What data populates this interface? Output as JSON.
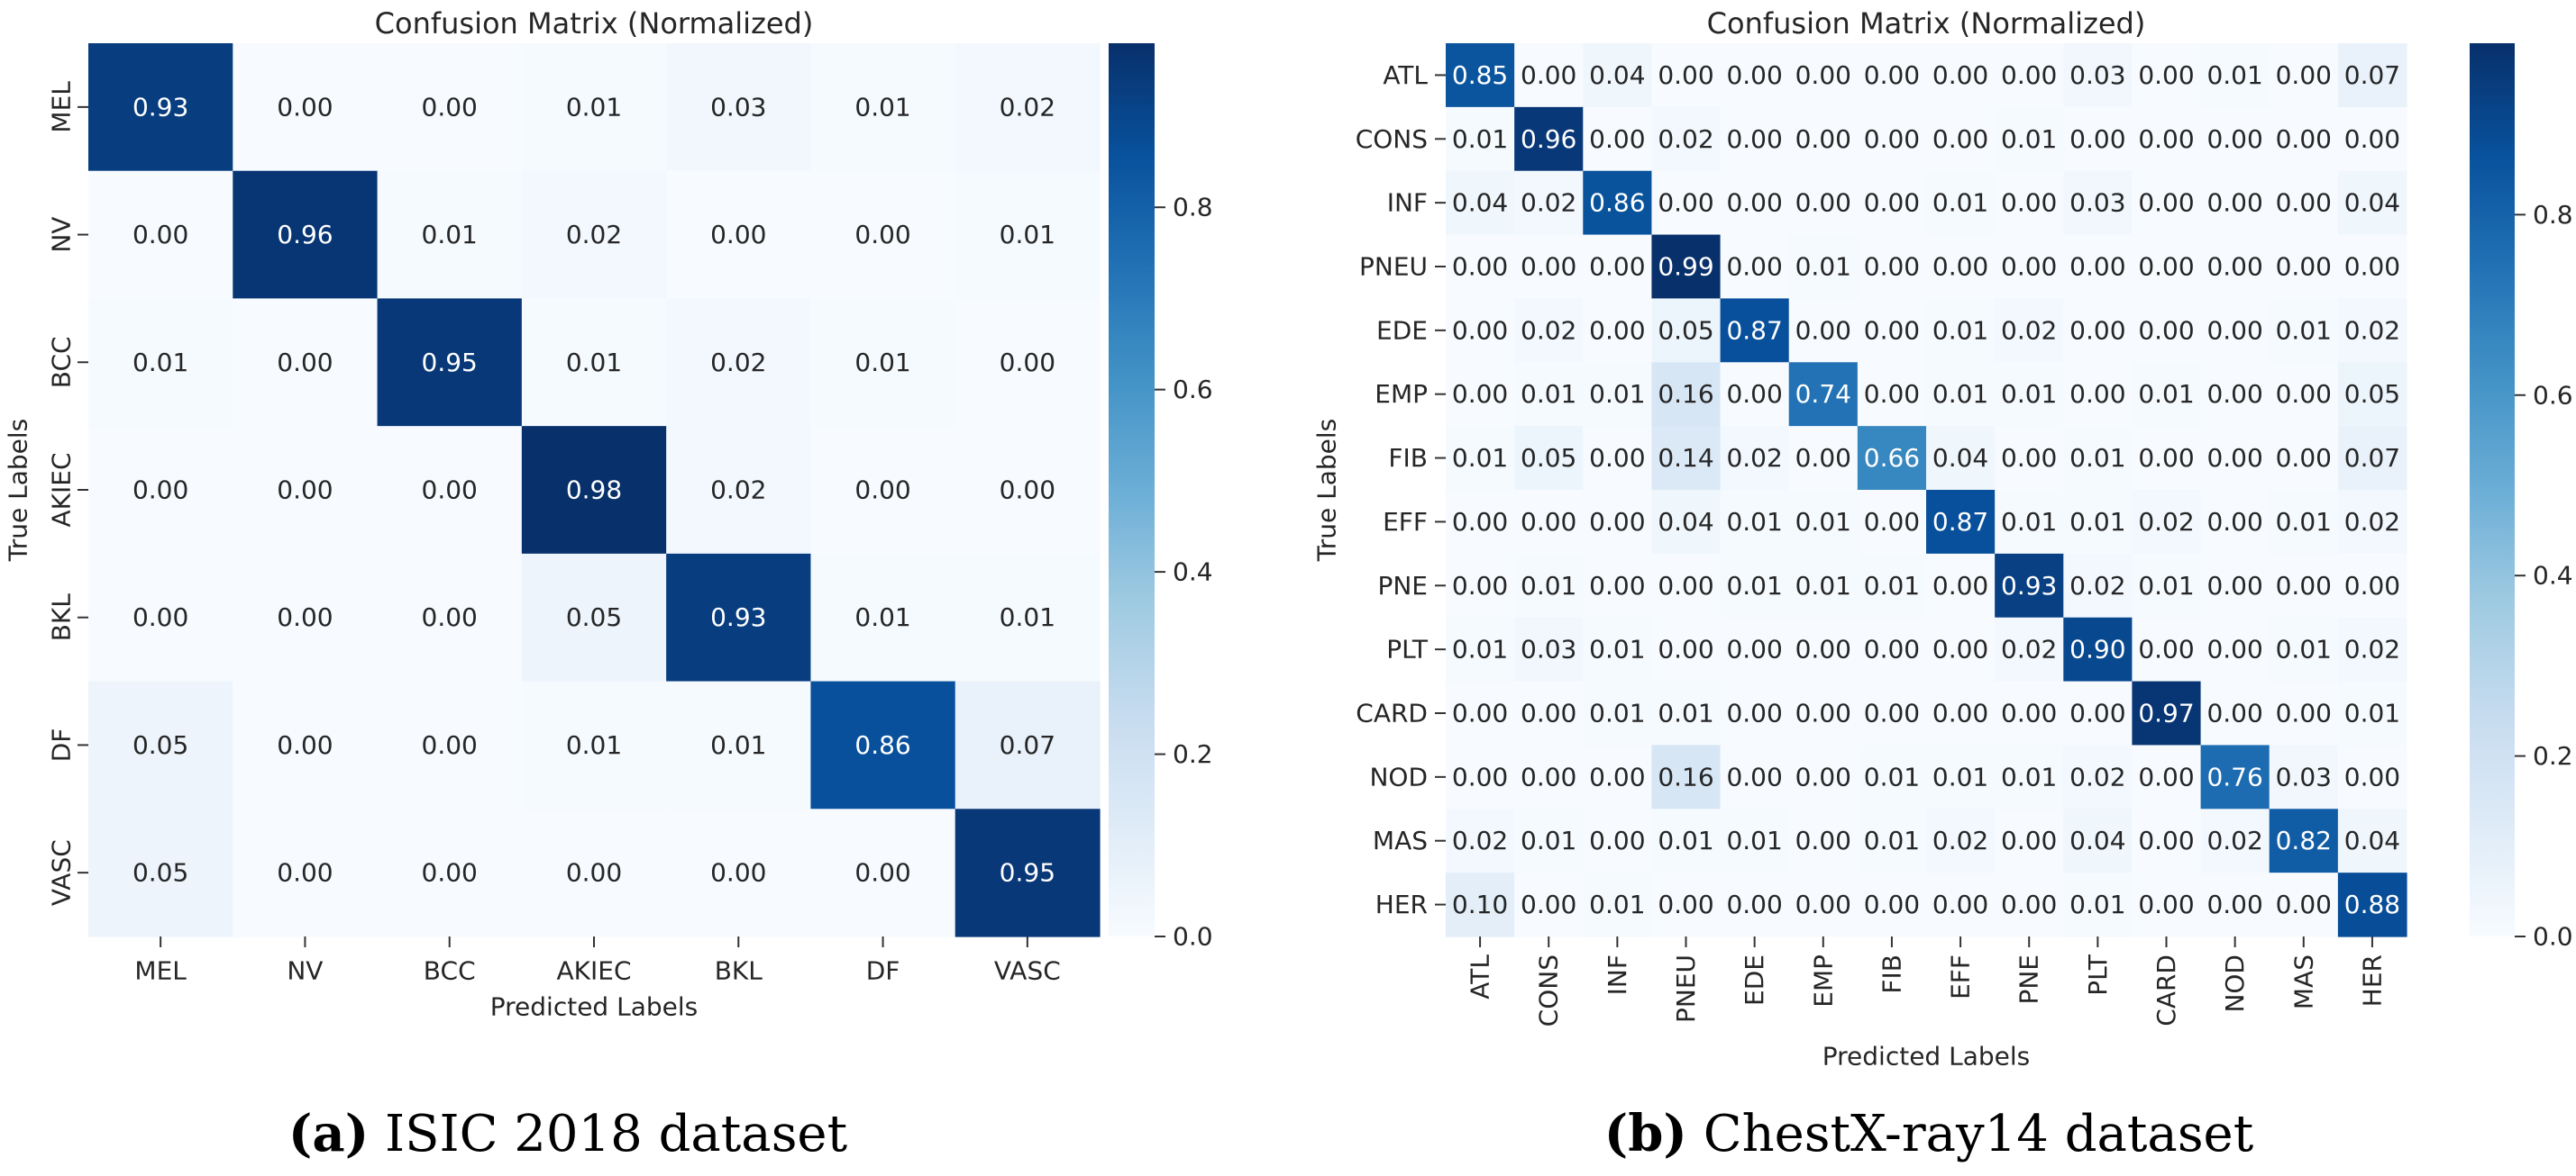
{
  "chart_data": [
    {
      "type": "heatmap",
      "title": "Confusion Matrix (Normalized)",
      "xlabel": "Predicted Labels",
      "ylabel": "True Labels",
      "caption_label": "(a)",
      "caption_text": "ISIC 2018 dataset",
      "x_categories": [
        "MEL",
        "NV",
        "BCC",
        "AKIEC",
        "BKL",
        "DF",
        "VASC"
      ],
      "y_categories": [
        "MEL",
        "NV",
        "BCC",
        "AKIEC",
        "BKL",
        "DF",
        "VASC"
      ],
      "values": [
        [
          0.93,
          0.0,
          0.0,
          0.01,
          0.03,
          0.01,
          0.02
        ],
        [
          0.0,
          0.96,
          0.01,
          0.02,
          0.0,
          0.0,
          0.01
        ],
        [
          0.01,
          0.0,
          0.95,
          0.01,
          0.02,
          0.01,
          0.0
        ],
        [
          0.0,
          0.0,
          0.0,
          0.98,
          0.02,
          0.0,
          0.0
        ],
        [
          0.0,
          0.0,
          0.0,
          0.05,
          0.93,
          0.01,
          0.01
        ],
        [
          0.05,
          0.0,
          0.0,
          0.01,
          0.01,
          0.86,
          0.07
        ],
        [
          0.05,
          0.0,
          0.0,
          0.0,
          0.0,
          0.0,
          0.95
        ]
      ],
      "colorbar": {
        "min": 0.0,
        "max": 0.98,
        "ticks": [
          0.0,
          0.2,
          0.4,
          0.6,
          0.8
        ],
        "colormap": "Blues"
      }
    },
    {
      "type": "heatmap",
      "title": "Confusion Matrix (Normalized)",
      "xlabel": "Predicted Labels",
      "ylabel": "True Labels",
      "caption_label": "(b)",
      "caption_text": "ChestX-ray14 dataset",
      "x_categories": [
        "ATL",
        "CONS",
        "INF",
        "PNEU",
        "EDE",
        "EMP",
        "FIB",
        "EFF",
        "PNE",
        "PLT",
        "CARD",
        "NOD",
        "MAS",
        "HER"
      ],
      "y_categories": [
        "ATL",
        "CONS",
        "INF",
        "PNEU",
        "EDE",
        "EMP",
        "FIB",
        "EFF",
        "PNE",
        "PLT",
        "CARD",
        "NOD",
        "MAS",
        "HER"
      ],
      "values": [
        [
          0.85,
          0.0,
          0.04,
          0.0,
          0.0,
          0.0,
          0.0,
          0.0,
          0.0,
          0.03,
          0.0,
          0.01,
          0.0,
          0.07
        ],
        [
          0.01,
          0.96,
          0.0,
          0.02,
          0.0,
          0.0,
          0.0,
          0.0,
          0.01,
          0.0,
          0.0,
          0.0,
          0.0,
          0.0
        ],
        [
          0.04,
          0.02,
          0.86,
          0.0,
          0.0,
          0.0,
          0.0,
          0.01,
          0.0,
          0.03,
          0.0,
          0.0,
          0.0,
          0.04
        ],
        [
          0.0,
          0.0,
          0.0,
          0.99,
          0.0,
          0.01,
          0.0,
          0.0,
          0.0,
          0.0,
          0.0,
          0.0,
          0.0,
          0.0
        ],
        [
          0.0,
          0.02,
          0.0,
          0.05,
          0.87,
          0.0,
          0.0,
          0.01,
          0.02,
          0.0,
          0.0,
          0.0,
          0.01,
          0.02
        ],
        [
          0.0,
          0.01,
          0.01,
          0.16,
          0.0,
          0.74,
          0.0,
          0.01,
          0.01,
          0.0,
          0.01,
          0.0,
          0.0,
          0.05
        ],
        [
          0.01,
          0.05,
          0.0,
          0.14,
          0.02,
          0.0,
          0.66,
          0.04,
          0.0,
          0.01,
          0.0,
          0.0,
          0.0,
          0.07
        ],
        [
          0.0,
          0.0,
          0.0,
          0.04,
          0.01,
          0.01,
          0.0,
          0.87,
          0.01,
          0.01,
          0.02,
          0.0,
          0.01,
          0.02
        ],
        [
          0.0,
          0.01,
          0.0,
          0.0,
          0.01,
          0.01,
          0.01,
          0.0,
          0.93,
          0.02,
          0.01,
          0.0,
          0.0,
          0.0
        ],
        [
          0.01,
          0.03,
          0.01,
          0.0,
          0.0,
          0.0,
          0.0,
          0.0,
          0.02,
          0.9,
          0.0,
          0.0,
          0.01,
          0.02
        ],
        [
          0.0,
          0.0,
          0.01,
          0.01,
          0.0,
          0.0,
          0.0,
          0.0,
          0.0,
          0.0,
          0.97,
          0.0,
          0.0,
          0.01
        ],
        [
          0.0,
          0.0,
          0.0,
          0.16,
          0.0,
          0.0,
          0.01,
          0.01,
          0.01,
          0.02,
          0.0,
          0.76,
          0.03,
          0.0
        ],
        [
          0.02,
          0.01,
          0.0,
          0.01,
          0.01,
          0.0,
          0.01,
          0.02,
          0.0,
          0.04,
          0.0,
          0.02,
          0.82,
          0.04
        ],
        [
          0.1,
          0.0,
          0.01,
          0.0,
          0.0,
          0.0,
          0.0,
          0.0,
          0.0,
          0.01,
          0.0,
          0.0,
          0.0,
          0.88
        ]
      ],
      "colorbar": {
        "min": 0.0,
        "max": 0.99,
        "ticks": [
          0.0,
          0.2,
          0.4,
          0.6,
          0.8
        ],
        "colormap": "Blues"
      }
    }
  ]
}
